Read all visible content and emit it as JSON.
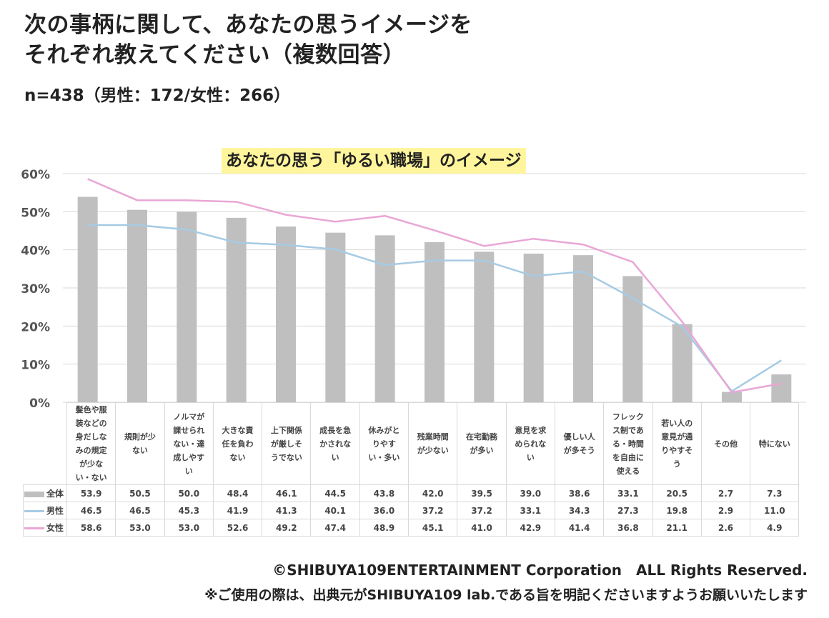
{
  "title_line1": "次の事柄に関して、あなたの思うイメージを",
  "title_line2": "それぞれ教えてください（複数回答）",
  "sample": "n=438（男性：172/女性：266）",
  "colors": {
    "all": "#bfbfbf",
    "male": "#a6cbe3",
    "female": "#e9a6d6",
    "highlight": "#fff59d"
  },
  "chart_data": {
    "type": "bar",
    "title": "あなたの思う「ゆるい職場」のイメージ",
    "ylim": [
      0,
      60
    ],
    "yticks": [
      "0%",
      "10%",
      "20%",
      "30%",
      "40%",
      "50%",
      "60%"
    ],
    "categories": [
      "髪色や服装などの身だしなみの規定が少ない・ない",
      "規則が少ない",
      "ノルマが課せられない・達成しやすい",
      "大きな責任を負わない",
      "上下関係が厳しそうでない",
      "成長を急かされない",
      "休みがとりやすい・多い",
      "残業時間が少ない",
      "在宅勤務が多い",
      "意見を求められない",
      "優しい人が多そう",
      "フレックス制である・時間を自由に使える",
      "若い人の意見が通りやすそう",
      "その他",
      "特にない"
    ],
    "series": [
      {
        "name": "全体",
        "type": "bar",
        "values": [
          53.9,
          50.5,
          50.0,
          48.4,
          46.1,
          44.5,
          43.8,
          42.0,
          39.5,
          39.0,
          38.6,
          33.1,
          20.5,
          2.7,
          7.3
        ]
      },
      {
        "name": "男性",
        "type": "line",
        "values": [
          46.5,
          46.5,
          45.3,
          41.9,
          41.3,
          40.1,
          36.0,
          37.2,
          37.2,
          33.1,
          34.3,
          27.3,
          19.8,
          2.9,
          11.0
        ]
      },
      {
        "name": "女性",
        "type": "line",
        "values": [
          58.6,
          53.0,
          53.0,
          52.6,
          49.2,
          47.4,
          48.9,
          45.1,
          41.0,
          42.9,
          41.4,
          36.8,
          21.1,
          2.6,
          4.9
        ]
      }
    ]
  },
  "footer": {
    "copyright": "©SHIBUYA109ENTERTAINMENT Corporation　ALL Rights Reserved.",
    "note": "※ご使用の際は、出典元がSHIBUYA109 lab.である旨を明記くださいますようお願いいたします"
  }
}
